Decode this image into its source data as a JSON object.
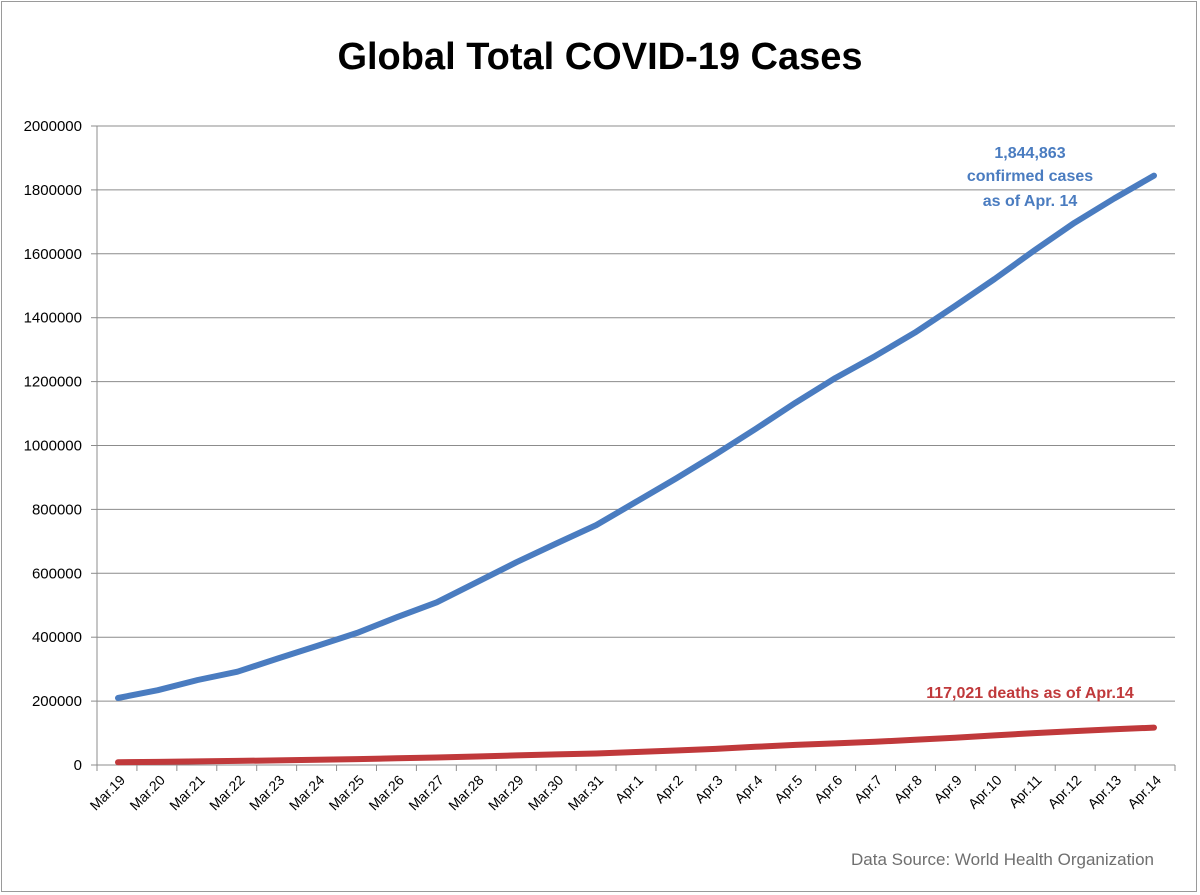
{
  "chart_data": {
    "type": "line",
    "title": "Global Total COVID-19 Cases",
    "xlabel": "",
    "ylabel": "",
    "ylim": [
      0,
      2000000
    ],
    "yticks": [
      "0",
      "200000",
      "400000",
      "600000",
      "800000",
      "1000000",
      "1200000",
      "1400000",
      "1600000",
      "1800000",
      "2000000"
    ],
    "categories": [
      "Mar.19",
      "Mar.20",
      "Mar.21",
      "Mar.22",
      "Mar.23",
      "Mar.24",
      "Mar.25",
      "Mar.26",
      "Mar.27",
      "Mar.28",
      "Mar.29",
      "Mar.30",
      "Mar.31",
      "Apr.1",
      "Apr.2",
      "Apr.3",
      "Apr.4",
      "Apr.5",
      "Apr.6",
      "Apr.7",
      "Apr.8",
      "Apr.9",
      "Apr.10",
      "Apr.11",
      "Apr.12",
      "Apr.13",
      "Apr.14"
    ],
    "grid": true,
    "series": [
      {
        "color": "#4a7cc0",
        "values": [
          209839,
          234073,
          266073,
          292142,
          332930,
          372757,
          413467,
          462684,
          509164,
          571678,
          634835,
          693224,
          750890,
          823626,
          896450,
          972303,
          1051635,
          1133758,
          1210956,
          1279722,
          1353361,
          1436198,
          1521252,
          1610909,
          1696588,
          1773084,
          1844863
        ]
      },
      {
        "color": "#c0393b",
        "values": [
          8778,
          9840,
          11184,
          12783,
          14509,
          16231,
          18433,
          21031,
          23335,
          26494,
          29957,
          33106,
          35941,
          40598,
          45526,
          50325,
          56986,
          62784,
          67594,
          72614,
          79235,
          85521,
          92798,
          99690,
          105952,
          111652,
          117021
        ]
      }
    ],
    "annotations": {
      "cases_line1": "1,844,863",
      "cases_line2": "confirmed cases",
      "cases_line3": "as of Apr. 14",
      "deaths": "117,021 deaths as of Apr.14"
    }
  },
  "source": "Data Source: World Health Organization"
}
